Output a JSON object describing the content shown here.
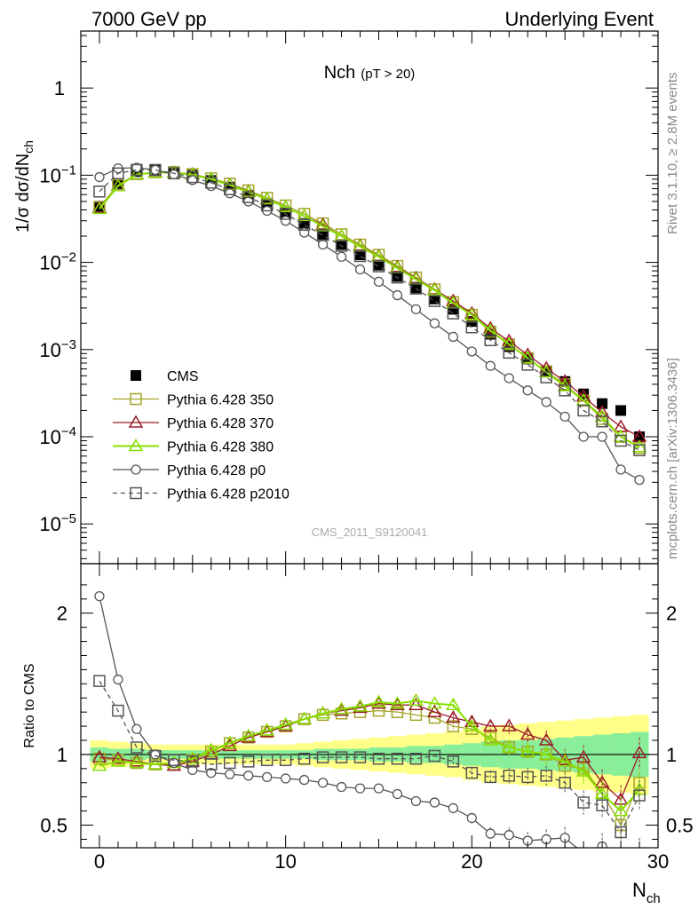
{
  "header": {
    "left": "7000 GeV pp",
    "right": "Underlying Event"
  },
  "side_text": {
    "top": "Rivet 3.1.10, ≥ 2.8M events",
    "bottom": "mcplots.cern.ch [arXiv:1306.3436]"
  },
  "chart_data": [
    {
      "type": "line",
      "panel": "main",
      "title": "Nch",
      "title_sub": "(pT > 20)",
      "ylabel": "1/σ dσ/dN",
      "ylabel_sub": "ch",
      "ylim": [
        3.5e-06,
        4.5
      ],
      "yscale": "log",
      "watermark": "CMS_2011_S9120041",
      "legend_position": "lower-left",
      "x": [
        0,
        1,
        2,
        3,
        4,
        5,
        6,
        7,
        8,
        9,
        10,
        11,
        12,
        13,
        14,
        15,
        16,
        17,
        18,
        19,
        20,
        21,
        22,
        23,
        24,
        25,
        26,
        27,
        28,
        29
      ],
      "series": [
        {
          "name": "CMS",
          "color": "#000000",
          "marker": "filled-square",
          "line": "none",
          "values": [
            0.044,
            0.08,
            0.11,
            0.115,
            0.11,
            0.1,
            0.087,
            0.073,
            0.059,
            0.047,
            0.037,
            0.028,
            0.021,
            0.016,
            0.0122,
            0.0093,
            0.0069,
            0.0051,
            0.0038,
            0.0029,
            0.0021,
            0.0015,
            0.00108,
            0.00078,
            0.00057,
            0.00043,
            0.00031,
            0.00024,
            0.0002,
            0.0001
          ]
        },
        {
          "name": "Pythia 6.428 350",
          "color": "#a5a52a",
          "marker": "open-square",
          "line": "solid",
          "values": [
            0.043,
            0.077,
            0.103,
            0.108,
            0.108,
            0.103,
            0.092,
            0.08,
            0.067,
            0.055,
            0.045,
            0.036,
            0.028,
            0.021,
            0.016,
            0.0122,
            0.0091,
            0.0067,
            0.0049,
            0.0035,
            0.0025,
            0.0016,
            0.00115,
            0.0008,
            0.00056,
            0.0004,
            0.00026,
            0.00016,
            0.0001,
            7.4e-05
          ]
        },
        {
          "name": "Pythia 6.428 370",
          "color": "#9b1b2a",
          "marker": "open-triangle",
          "line": "solid",
          "values": [
            0.042,
            0.076,
            0.102,
            0.108,
            0.107,
            0.102,
            0.09,
            0.078,
            0.065,
            0.053,
            0.043,
            0.034,
            0.027,
            0.02,
            0.0155,
            0.0118,
            0.0088,
            0.0066,
            0.0049,
            0.0036,
            0.0026,
            0.00175,
            0.00125,
            0.00087,
            0.00061,
            0.00043,
            0.00029,
            0.00019,
            0.00013,
            0.0001
          ]
        },
        {
          "name": "Pythia 6.428 380",
          "color": "#88dd00",
          "marker": "open-triangle",
          "line": "solid",
          "values": [
            0.041,
            0.075,
            0.102,
            0.107,
            0.107,
            0.101,
            0.09,
            0.077,
            0.064,
            0.053,
            0.043,
            0.034,
            0.026,
            0.02,
            0.0152,
            0.0116,
            0.0086,
            0.0064,
            0.0048,
            0.0034,
            0.0025,
            0.00165,
            0.00115,
            0.0008,
            0.00055,
            0.00038,
            0.00026,
            0.00017,
            0.0001,
            7.6e-05
          ]
        },
        {
          "name": "Pythia 6.428 p0",
          "color": "#555555",
          "marker": "open-circle",
          "line": "solid",
          "values": [
            0.095,
            0.12,
            0.122,
            0.115,
            0.102,
            0.088,
            0.075,
            0.062,
            0.05,
            0.039,
            0.03,
            0.022,
            0.016,
            0.0116,
            0.0083,
            0.006,
            0.0042,
            0.0029,
            0.002,
            0.0014,
            0.00095,
            0.00065,
            0.00047,
            0.00034,
            0.00025,
            0.00017,
            0.0001,
            0.0001,
            4.2e-05,
            3.2e-05
          ]
        },
        {
          "name": "Pythia 6.428 p2010",
          "color": "#555555",
          "marker": "open-square",
          "line": "dashed",
          "values": [
            0.065,
            0.105,
            0.115,
            0.115,
            0.105,
            0.095,
            0.082,
            0.069,
            0.056,
            0.045,
            0.036,
            0.027,
            0.0205,
            0.0155,
            0.0118,
            0.009,
            0.0067,
            0.005,
            0.0036,
            0.0026,
            0.0018,
            0.00128,
            0.00092,
            0.00067,
            0.00048,
            0.00034,
            0.0002,
            0.00015,
            9e-05,
            7e-05
          ]
        }
      ]
    },
    {
      "type": "line",
      "panel": "ratio",
      "ylabel": "Ratio to CMS",
      "xlabel": "N",
      "xlabel_sub": "ch",
      "xlim": [
        -1,
        30
      ],
      "ylim": [
        0.34,
        2.35
      ],
      "yticks": [
        0.5,
        1,
        2
      ],
      "reference_line": 1,
      "x": [
        0,
        1,
        2,
        3,
        4,
        5,
        6,
        7,
        8,
        9,
        10,
        11,
        12,
        13,
        14,
        15,
        16,
        17,
        18,
        19,
        20,
        21,
        22,
        23,
        24,
        25,
        26,
        27,
        28,
        29
      ],
      "bands": [
        {
          "name": "yellow band",
          "color": "#ffff88",
          "half_width": [
            0.1,
            0.09,
            0.08,
            0.07,
            0.07,
            0.07,
            0.07,
            0.07,
            0.07,
            0.07,
            0.07,
            0.08,
            0.09,
            0.1,
            0.11,
            0.12,
            0.13,
            0.14,
            0.15,
            0.16,
            0.18,
            0.2,
            0.21,
            0.22,
            0.23,
            0.24,
            0.25,
            0.26,
            0.27,
            0.28
          ]
        },
        {
          "name": "green band",
          "color": "#88ee99",
          "half_width": [
            0.05,
            0.04,
            0.04,
            0.03,
            0.03,
            0.03,
            0.03,
            0.03,
            0.03,
            0.03,
            0.03,
            0.03,
            0.04,
            0.04,
            0.04,
            0.05,
            0.05,
            0.06,
            0.06,
            0.07,
            0.08,
            0.09,
            0.1,
            0.1,
            0.11,
            0.12,
            0.13,
            0.14,
            0.15,
            0.16
          ]
        }
      ],
      "series": [
        {
          "name": "Pythia 6.428 350",
          "color": "#a5a52a",
          "marker": "open-square",
          "line": "solid",
          "values": [
            0.97,
            0.96,
            0.94,
            0.93,
            0.93,
            0.96,
            1.02,
            1.08,
            1.12,
            1.16,
            1.2,
            1.25,
            1.28,
            1.29,
            1.3,
            1.31,
            1.3,
            1.28,
            1.26,
            1.2,
            1.18,
            1.12,
            1.05,
            1.02,
            1.0,
            0.92,
            0.9,
            0.73,
            0.5,
            0.8
          ]
        },
        {
          "name": "Pythia 6.428 370",
          "color": "#9b1b2a",
          "marker": "open-triangle",
          "line": "solid",
          "values": [
            0.98,
            0.97,
            0.95,
            0.93,
            0.92,
            0.95,
            1.0,
            1.06,
            1.12,
            1.16,
            1.2,
            1.25,
            1.29,
            1.31,
            1.33,
            1.36,
            1.35,
            1.35,
            1.3,
            1.26,
            1.23,
            1.2,
            1.2,
            1.14,
            1.1,
            0.96,
            0.98,
            0.8,
            0.68,
            1.01
          ]
        },
        {
          "name": "Pythia 6.428 380",
          "color": "#88dd00",
          "marker": "open-triangle",
          "line": "solid",
          "values": [
            0.92,
            0.95,
            0.94,
            0.93,
            0.94,
            0.97,
            1.03,
            1.08,
            1.13,
            1.17,
            1.21,
            1.25,
            1.29,
            1.32,
            1.34,
            1.37,
            1.36,
            1.38,
            1.36,
            1.35,
            1.2,
            1.1,
            1.05,
            1.02,
            1.0,
            0.95,
            0.88,
            0.72,
            0.6,
            0.75
          ]
        },
        {
          "name": "Pythia 6.428 p0",
          "color": "#555555",
          "marker": "open-circle",
          "line": "solid",
          "values": [
            2.12,
            1.53,
            1.18,
            1.0,
            0.94,
            0.89,
            0.87,
            0.86,
            0.85,
            0.84,
            0.83,
            0.82,
            0.8,
            0.77,
            0.76,
            0.76,
            0.72,
            0.67,
            0.66,
            0.62,
            0.55,
            0.44,
            0.43,
            0.39,
            0.4,
            0.41,
            0.3,
            0.35,
            0.23,
            0.3
          ]
        },
        {
          "name": "Pythia 6.428 p2010",
          "color": "#555555",
          "marker": "open-square",
          "line": "dashed",
          "values": [
            1.52,
            1.31,
            1.05,
            0.99,
            0.96,
            0.95,
            0.93,
            0.94,
            0.95,
            0.96,
            0.96,
            0.97,
            0.98,
            0.98,
            0.98,
            0.97,
            0.97,
            0.97,
            0.99,
            0.95,
            0.87,
            0.84,
            0.85,
            0.84,
            0.85,
            0.8,
            0.66,
            0.64,
            0.45,
            0.71
          ]
        }
      ]
    }
  ],
  "ticks": {
    "x_labels": [
      "0",
      "10",
      "20",
      "30"
    ],
    "main_y_labels": [
      {
        "mant": "10",
        "exp": "−5",
        "v": 1e-05
      },
      {
        "mant": "10",
        "exp": "−4",
        "v": 0.0001
      },
      {
        "mant": "10",
        "exp": "−3",
        "v": 0.001
      },
      {
        "mant": "10",
        "exp": "−2",
        "v": 0.01
      },
      {
        "mant": "10",
        "exp": "−1",
        "v": 0.1
      },
      {
        "mant": "1",
        "exp": "",
        "v": 1
      }
    ],
    "ratio_y_labels": [
      "0.5",
      "1",
      "2"
    ]
  }
}
